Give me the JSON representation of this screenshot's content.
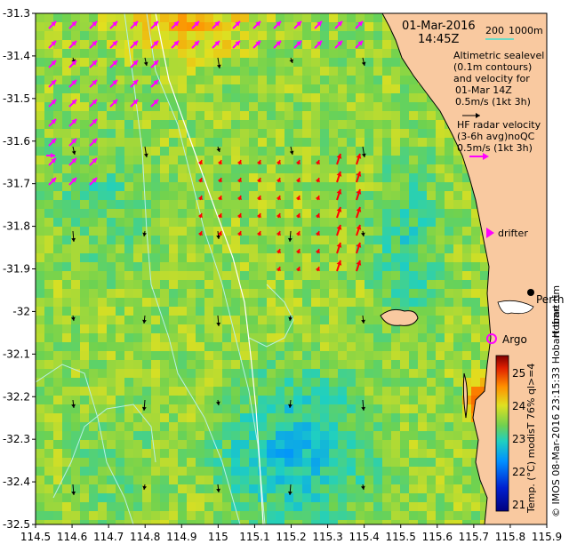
{
  "header": {
    "date": "01-Mar-2016",
    "time": "14:45Z",
    "scale_label": "200",
    "scale_unit": "1000m"
  },
  "legend": {
    "altimetry_lines": [
      "Altimetric sealevel",
      "(0.1m contours)",
      "and velocity for",
      "01-Mar 14Z",
      "0.5m/s (1kt 3h)"
    ],
    "hf_lines": [
      "HF radar velocity",
      "(3-6h avg)noQC",
      "0.5m/s (1kt 3h)"
    ],
    "drifter": "drifter",
    "argo": "Argo",
    "city": "Perth",
    "hobart_fragment": "Hobart tim"
  },
  "colorbar": {
    "ticks": [
      "25",
      "24",
      "23",
      "22",
      "21"
    ],
    "label": "Temp. (°C) modisT 76% ql>=4"
  },
  "credit": "© IMOS 08-Mar-2016 23:15:33 Hobart time",
  "axes": {
    "x_ticks": [
      "114.5",
      "114.6",
      "114.7",
      "114.8",
      "114.9",
      "115",
      "115.1",
      "115.2",
      "115.3",
      "115.4",
      "115.5",
      "115.6",
      "115.7",
      "115.8",
      "115.9"
    ],
    "y_ticks": [
      "-31.3",
      "-31.4",
      "-31.5",
      "-31.6",
      "-31.7",
      "-31.8",
      "-31.9",
      "-32",
      "-32.1",
      "-32.2",
      "-32.3",
      "-32.4",
      "-32.5"
    ],
    "xlim": [
      114.5,
      115.9
    ],
    "ylim": [
      -32.5,
      -31.3
    ]
  },
  "colors": {
    "land": "#f9c9a0",
    "altimetry_arrow": "#000000",
    "hf_arrow": "#ff00ff",
    "red_arrow": "#ff0000",
    "argo": "#ff00ff",
    "scale_bar": "#40e0d0"
  }
}
